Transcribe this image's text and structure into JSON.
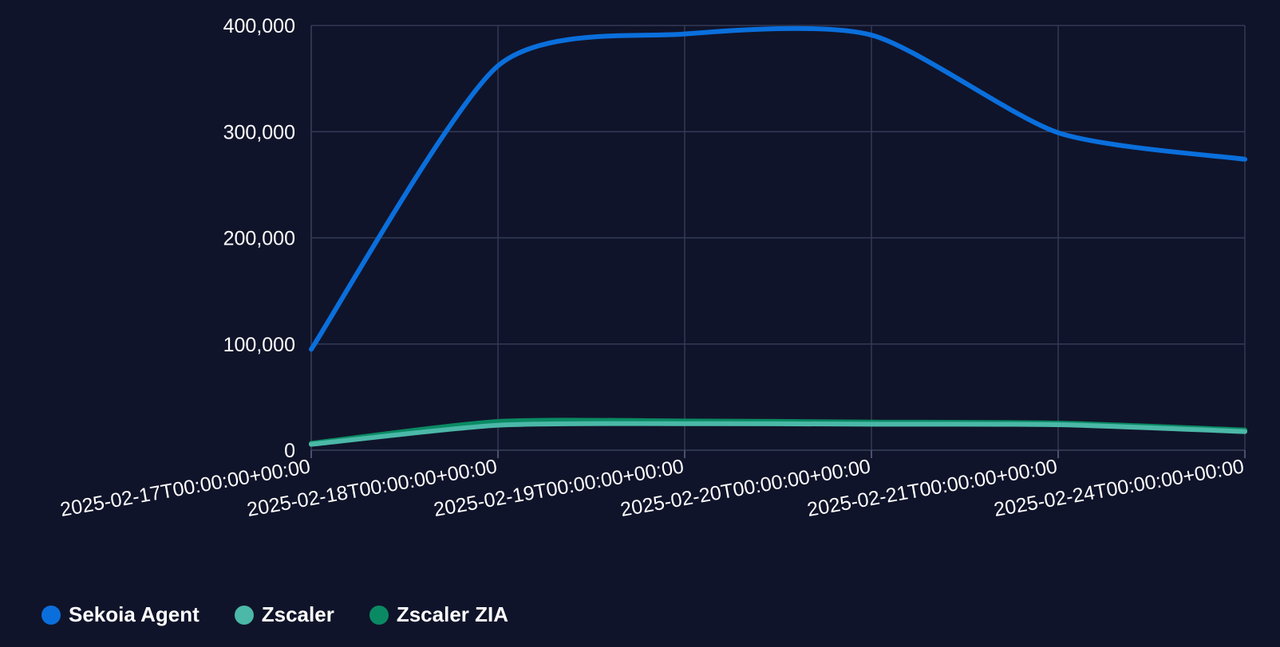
{
  "chart_data": {
    "type": "line",
    "x": [
      "2025-02-17T00:00:00+00:00",
      "2025-02-18T00:00:00+00:00",
      "2025-02-19T00:00:00+00:00",
      "2025-02-20T00:00:00+00:00",
      "2025-02-21T00:00:00+00:00",
      "2025-02-24T00:00:00+00:00"
    ],
    "yticks": [
      "0",
      "100,000",
      "200,000",
      "300,000",
      "400,000"
    ],
    "ylim": [
      0,
      400000
    ],
    "grid": true,
    "legend_position": "bottom-left",
    "series": [
      {
        "name": "Sekoia Agent",
        "color": "#0a6fdc",
        "values": [
          95000,
          362000,
          392000,
          391000,
          299000,
          274000
        ]
      },
      {
        "name": "Zscaler ZIA",
        "color": "#0a8a63",
        "values": [
          6500,
          27000,
          27500,
          26500,
          25500,
          19000
        ]
      },
      {
        "name": "Zscaler",
        "color": "#4bb8a8",
        "values": [
          5500,
          23500,
          25000,
          24500,
          24000,
          17500
        ]
      }
    ]
  },
  "legend": [
    {
      "label": "Sekoia Agent",
      "color": "#0a6fdc"
    },
    {
      "label": "Zscaler",
      "color": "#4bb8a8"
    },
    {
      "label": "Zscaler ZIA",
      "color": "#0a8a63"
    }
  ]
}
